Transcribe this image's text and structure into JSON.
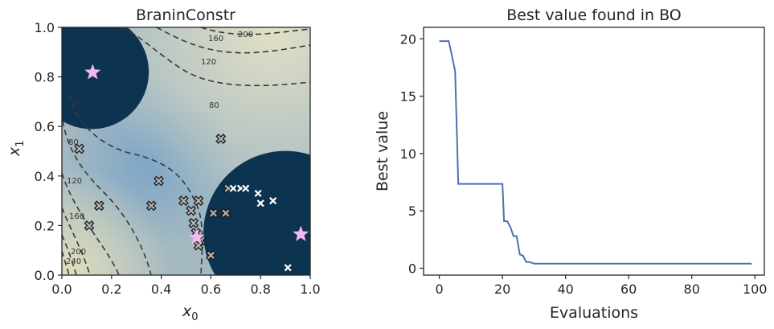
{
  "chart_data": [
    {
      "type": "contour",
      "title": "BraninConstr",
      "xlabel_main": "x",
      "xlabel_sub": "0",
      "ylabel_main": "x",
      "ylabel_sub": "1",
      "xlim": [
        0.0,
        1.0
      ],
      "ylim": [
        0.0,
        1.0
      ],
      "xticks": [
        "0.0",
        "0.2",
        "0.4",
        "0.6",
        "0.8",
        "1.0"
      ],
      "yticks": [
        "0.0",
        "0.2",
        "0.4",
        "0.6",
        "0.8",
        "1.0"
      ],
      "contour_levels": [
        "40",
        "80",
        "120",
        "160",
        "200",
        "240",
        "40",
        "80",
        "120",
        "160",
        "200"
      ],
      "infeasible_regions": [
        {
          "cx": 0.12,
          "cy": 0.82,
          "r": 0.23
        },
        {
          "cx": 0.9,
          "cy": 0.17,
          "r": 0.33
        }
      ],
      "optima": [
        {
          "x": 0.124,
          "y": 0.818
        },
        {
          "x": 0.543,
          "y": 0.152
        },
        {
          "x": 0.962,
          "y": 0.165
        }
      ],
      "evaluations_feasible": [
        {
          "x": 0.07,
          "y": 0.51
        },
        {
          "x": 0.15,
          "y": 0.28
        },
        {
          "x": 0.11,
          "y": 0.2
        },
        {
          "x": 0.39,
          "y": 0.38
        },
        {
          "x": 0.36,
          "y": 0.28
        },
        {
          "x": 0.49,
          "y": 0.3
        },
        {
          "x": 0.52,
          "y": 0.26
        },
        {
          "x": 0.53,
          "y": 0.21
        },
        {
          "x": 0.55,
          "y": 0.3
        },
        {
          "x": 0.54,
          "y": 0.17
        },
        {
          "x": 0.56,
          "y": 0.14
        },
        {
          "x": 0.55,
          "y": 0.12
        },
        {
          "x": 0.6,
          "y": 0.08
        },
        {
          "x": 0.61,
          "y": 0.25
        },
        {
          "x": 0.64,
          "y": 0.55
        },
        {
          "x": 0.66,
          "y": 0.25
        },
        {
          "x": 0.67,
          "y": 0.35
        }
      ],
      "evaluations_infeasible": [
        {
          "x": 0.69,
          "y": 0.35
        },
        {
          "x": 0.72,
          "y": 0.35
        },
        {
          "x": 0.74,
          "y": 0.35
        },
        {
          "x": 0.79,
          "y": 0.33
        },
        {
          "x": 0.8,
          "y": 0.29
        },
        {
          "x": 0.85,
          "y": 0.3
        },
        {
          "x": 0.91,
          "y": 0.03
        }
      ]
    },
    {
      "type": "line",
      "title": "Best value found in BO",
      "xlabel": "Evaluations",
      "ylabel": "Best value",
      "xlim": [
        -5,
        103
      ],
      "ylim": [
        -0.6,
        21
      ],
      "xticks": [
        0,
        20,
        40,
        60,
        80,
        100
      ],
      "yticks": [
        0,
        5,
        10,
        15,
        20
      ],
      "series": [
        {
          "color": "#4c72b0",
          "x": [
            0,
            3,
            5,
            6,
            20,
            20.5,
            21.5,
            22.5,
            23.5,
            24.5,
            25.5,
            26.5,
            27.5,
            28.5,
            30,
            31,
            99
          ],
          "y": [
            19.8,
            19.8,
            17.2,
            7.35,
            7.35,
            4.1,
            4.1,
            3.6,
            2.8,
            2.8,
            1.2,
            1.1,
            0.55,
            0.55,
            0.4,
            0.4,
            0.4
          ]
        }
      ]
    }
  ]
}
